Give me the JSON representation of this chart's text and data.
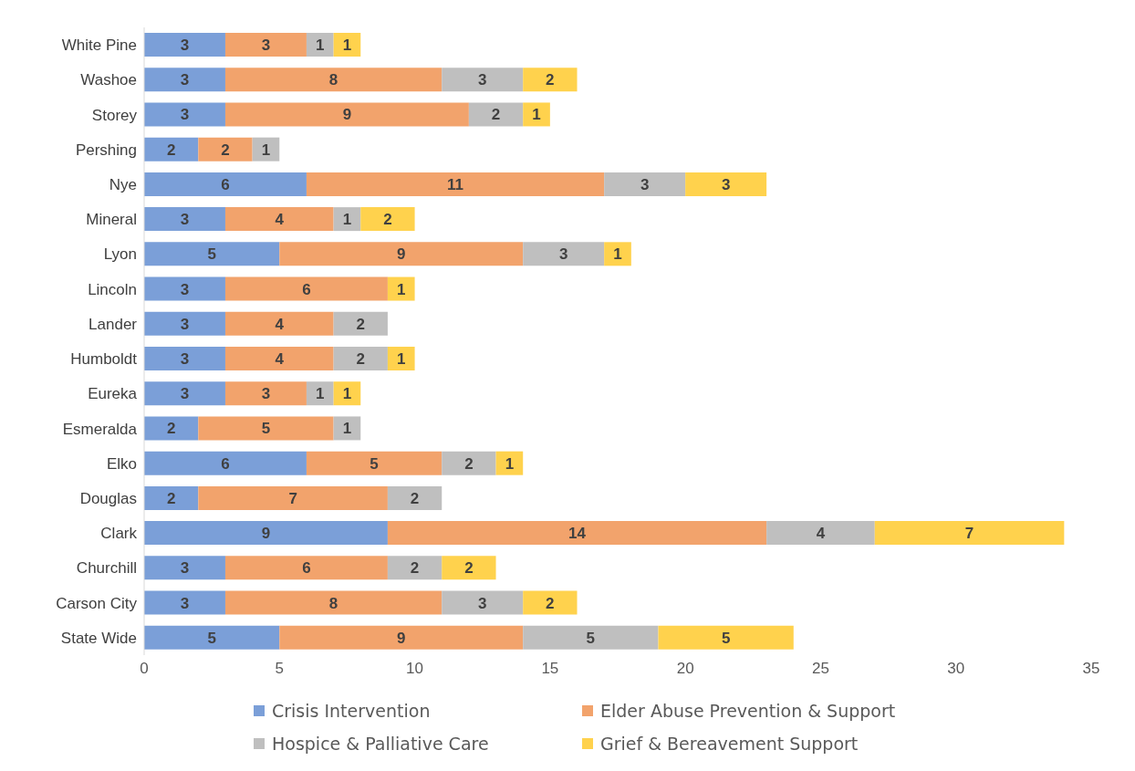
{
  "chart_data": {
    "type": "bar",
    "orientation": "horizontal",
    "stacked": true,
    "data_labels": true,
    "grid": false,
    "legend": "bottom",
    "categories": [
      "White Pine",
      "Washoe",
      "Storey",
      "Pershing",
      "Nye",
      "Mineral",
      "Lyon",
      "Lincoln",
      "Lander",
      "Humboldt",
      "Eureka",
      "Esmeralda",
      "Elko",
      "Douglas",
      "Clark",
      "Churchill",
      "Carson City",
      "State Wide"
    ],
    "series": [
      {
        "name": "Crisis Intervention",
        "color": "#7b9fd8",
        "values": [
          3,
          3,
          3,
          2,
          6,
          3,
          5,
          3,
          3,
          3,
          3,
          2,
          6,
          2,
          9,
          3,
          3,
          5
        ]
      },
      {
        "name": "Elder Abuse Prevention & Support",
        "color": "#f2a36c",
        "values": [
          3,
          8,
          9,
          2,
          11,
          4,
          9,
          6,
          4,
          4,
          3,
          5,
          5,
          7,
          14,
          6,
          8,
          9
        ]
      },
      {
        "name": "Hospice & Palliative Care",
        "color": "#bfbfbf",
        "values": [
          1,
          3,
          2,
          1,
          3,
          1,
          3,
          null,
          2,
          2,
          1,
          1,
          2,
          2,
          4,
          2,
          3,
          5
        ]
      },
      {
        "name": "Grief & Bereavement Support",
        "color": "#ffd24d",
        "values": [
          1,
          2,
          1,
          null,
          3,
          2,
          1,
          1,
          null,
          1,
          1,
          null,
          1,
          null,
          7,
          2,
          2,
          5
        ]
      }
    ],
    "xlim": [
      0,
      35
    ],
    "xticks": [
      0,
      5,
      10,
      15,
      20,
      25,
      30,
      35
    ]
  }
}
